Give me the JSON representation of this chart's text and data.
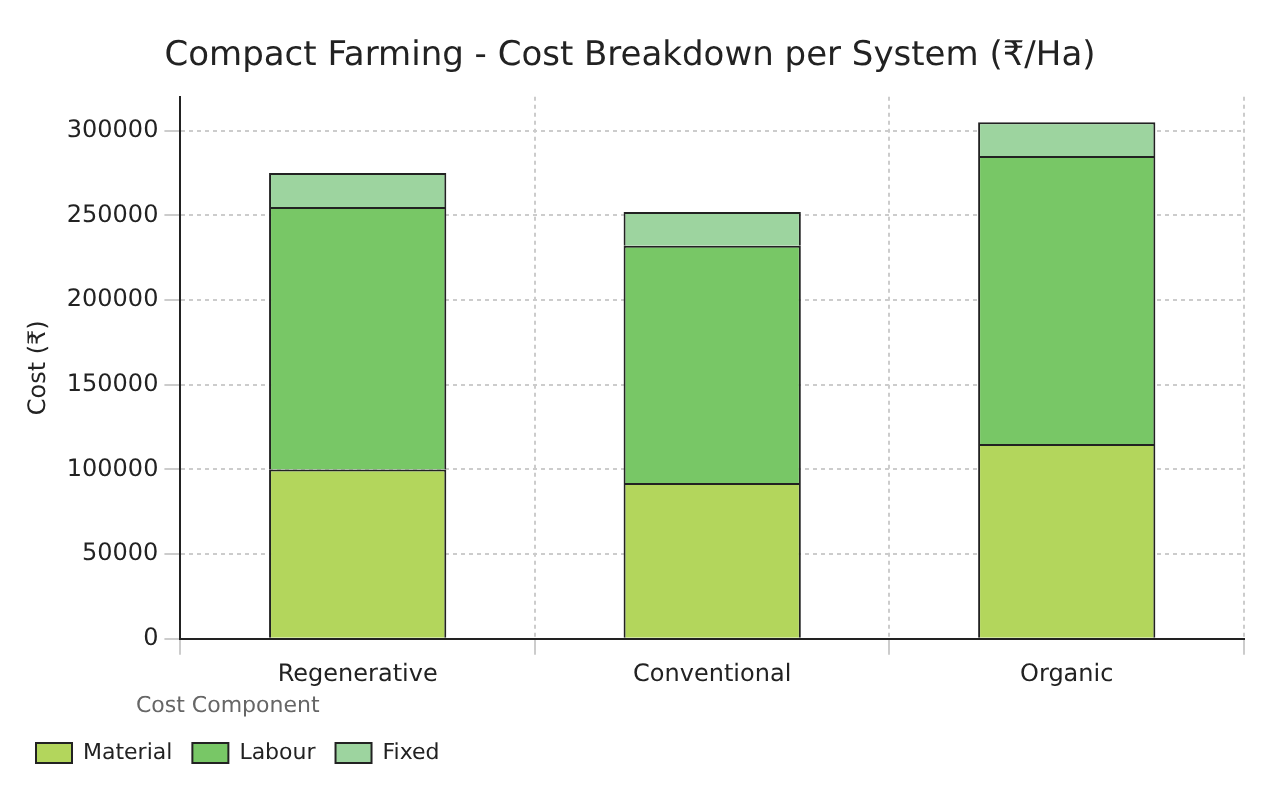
{
  "chart_data": {
    "type": "bar",
    "title": "Compact Farming - Cost Breakdown per System (₹/Ha)",
    "ylabel": "Cost (₹)",
    "legend_title": "Cost Component",
    "categories": [
      "Regenerative",
      "Conventional",
      "Organic"
    ],
    "series": [
      {
        "name": "Material",
        "color": "#b3d65c",
        "values": [
          100000,
          92000,
          115000
        ]
      },
      {
        "name": "Labour",
        "color": "#78c766",
        "values": [
          155000,
          140000,
          170000
        ]
      },
      {
        "name": "Fixed",
        "color": "#9dd49f",
        "values": [
          20000,
          20000,
          20000
        ]
      }
    ],
    "stacked": true,
    "ylim": [
      0,
      320000
    ],
    "yticks": [
      0,
      50000,
      100000,
      150000,
      200000,
      250000,
      300000
    ],
    "grid": true,
    "legend": "bottom left"
  }
}
